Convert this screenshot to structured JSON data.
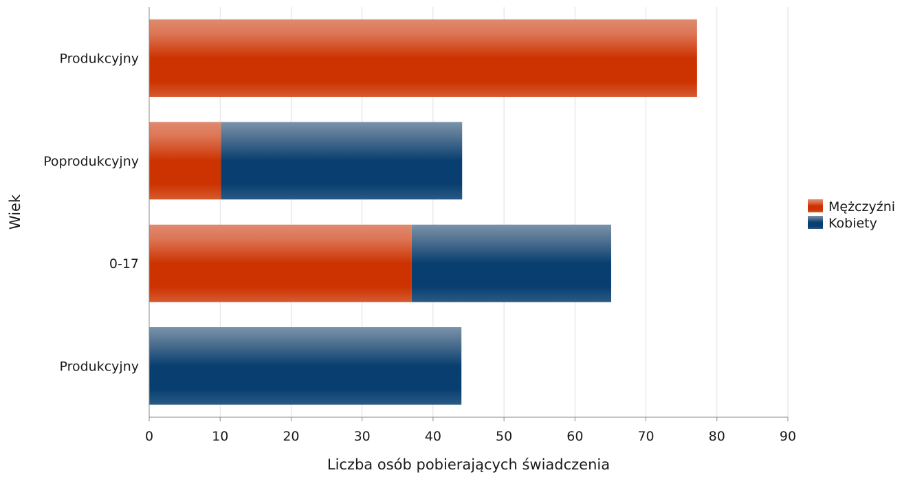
{
  "chart_data": {
    "type": "bar",
    "orientation": "horizontal",
    "stacked": true,
    "categories": [
      "Produkcyjny",
      "Poprodukcyjny",
      "0-17",
      "Produkcyjny"
    ],
    "series": [
      {
        "name": "Mężczyźni",
        "values": [
          77.2,
          10.1,
          37.0,
          0
        ],
        "color": "#cc3300"
      },
      {
        "name": "Kobiety",
        "values": [
          0,
          34.0,
          28.1,
          44.0
        ],
        "color": "#083f70"
      }
    ],
    "x_ticks": [
      "0",
      "10",
      "20",
      "30",
      "40",
      "50",
      "60",
      "70",
      "80",
      "90"
    ],
    "xlabel": "Liczba osób pobierających świadczenia",
    "ylabel": "Wiek",
    "xlim": [
      0,
      90
    ],
    "grid": true,
    "legend_position": "right"
  }
}
